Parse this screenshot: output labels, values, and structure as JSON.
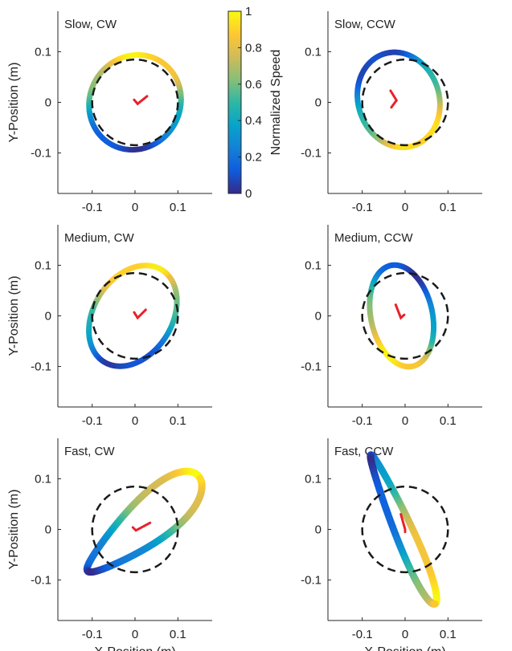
{
  "chart_data": {
    "type": "scatter",
    "x_tick_labels": [
      "-0.1",
      "0",
      "0.1"
    ],
    "y_tick_labels": [
      "0.1",
      "0",
      "-0.1"
    ],
    "x_ticks": [
      -0.1,
      0,
      0.1
    ],
    "y_ticks": [
      0.1,
      0,
      -0.1
    ],
    "xlim": [
      -0.18,
      0.18
    ],
    "ylim": [
      -0.18,
      0.18
    ],
    "xlabel": "X-Position (m)",
    "ylabel": "Y-Position (m)",
    "reference_circle_radius": 0.1,
    "colorbar": {
      "label": "Normalized Speed",
      "tick_labels": [
        "1",
        "0.8",
        "0.6",
        "0.4",
        "0.2",
        "0"
      ],
      "ticks": [
        1,
        0.8,
        0.6,
        0.4,
        0.2,
        0
      ],
      "colors": [
        "#352a87",
        "#0f5cdd",
        "#1481d6",
        "#06a4ca",
        "#2eb7a4",
        "#87bf77",
        "#d1bb59",
        "#fec832",
        "#f9fb0e"
      ]
    },
    "marker_color": "#e8212b",
    "panels": [
      {
        "title": "Slow, CW",
        "cx": 0.0,
        "cy": 0.0,
        "rx": 0.108,
        "ry": 0.093,
        "rot": 12,
        "k": 0.0,
        "w": 7,
        "speed_phase": 0.3,
        "marker": [
          [
            -0.002,
            0.005
          ],
          [
            0.006,
            -0.003
          ],
          [
            0.028,
            0.012
          ]
        ]
      },
      {
        "title": "Slow, CCW",
        "cx": -0.015,
        "cy": 0.005,
        "rx": 0.1,
        "ry": 0.09,
        "rot": -38,
        "k": 0.0,
        "w": 7,
        "speed_phase": 1.9,
        "marker": [
          [
            -0.034,
            0.023
          ],
          [
            -0.02,
            0.004
          ],
          [
            -0.032,
            -0.01
          ]
        ]
      },
      {
        "title": "Medium, CW",
        "cx": -0.005,
        "cy": 0.0,
        "rx": 0.115,
        "ry": 0.085,
        "rot": 42,
        "k": 0.0,
        "w": 7,
        "speed_phase": 0.8,
        "marker": [
          [
            -0.002,
            0.007
          ],
          [
            0.006,
            -0.004
          ],
          [
            0.025,
            0.012
          ]
        ]
      },
      {
        "title": "Medium, CCW",
        "cx": -0.008,
        "cy": 0.0,
        "rx": 0.103,
        "ry": 0.071,
        "rot": -72,
        "k": 0.0,
        "w": 7,
        "speed_phase": 2.2,
        "marker": [
          [
            -0.022,
            0.022
          ],
          [
            -0.01,
            -0.004
          ],
          [
            -0.002,
            0.002
          ]
        ]
      },
      {
        "title": "Fast, CW",
        "cx": 0.02,
        "cy": 0.01,
        "rx": 0.16,
        "ry": 0.045,
        "rot": 35,
        "k": 0.42,
        "w": 9,
        "speed_phase": 1.3,
        "marker": [
          [
            -0.005,
            0.004
          ],
          [
            0.002,
            -0.002
          ],
          [
            0.035,
            0.013
          ]
        ]
      },
      {
        "title": "Fast, CCW",
        "cx": -0.005,
        "cy": 0.0,
        "rx": 0.165,
        "ry": 0.02,
        "rot": -63,
        "k": 0.35,
        "w": 9,
        "speed_phase": 1.0,
        "marker": [
          [
            -0.01,
            0.03
          ],
          [
            0.0,
            0.0
          ],
          [
            0.0,
            -0.005
          ]
        ]
      }
    ]
  }
}
